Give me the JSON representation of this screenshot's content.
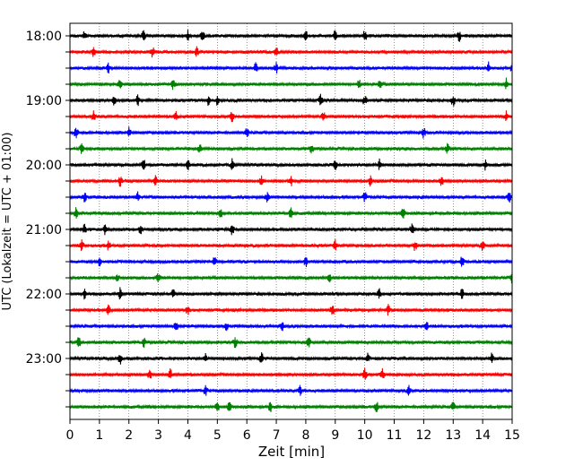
{
  "chart_data": {
    "type": "line",
    "xlabel": "Zeit  [min]",
    "ylabel": "UTC (Lokalzeit = UTC + 01:00)",
    "xlim": [
      0,
      15
    ],
    "x_ticks": [
      "0",
      "1",
      "2",
      "3",
      "4",
      "5",
      "6",
      "7",
      "8",
      "9",
      "10",
      "11",
      "12",
      "13",
      "14",
      "15"
    ],
    "y_tick_labels": [
      "18:00",
      "19:00",
      "20:00",
      "21:00",
      "22:00",
      "23:00"
    ],
    "grid": "vertical dotted lines at each minute",
    "row_interval_minutes": 15,
    "trace_count": 24,
    "trace_colors": [
      "#000000",
      "#ff0000",
      "#0000ff",
      "#008000"
    ],
    "traces": [
      {
        "start": "18:00",
        "events": [
          0.5,
          2.5,
          4.0,
          4.5,
          8.0,
          9.0,
          10.0,
          13.2
        ]
      },
      {
        "start": "18:15",
        "events": [
          0.8,
          2.8,
          4.3,
          7.0
        ]
      },
      {
        "start": "18:30",
        "events": [
          1.3,
          6.3,
          7.0,
          14.2,
          15.0
        ]
      },
      {
        "start": "18:45",
        "events": [
          1.7,
          3.5,
          9.8,
          10.5,
          14.8
        ]
      },
      {
        "start": "19:00",
        "events": [
          1.5,
          2.3,
          4.7,
          5.0,
          8.5,
          10.0,
          13.0
        ]
      },
      {
        "start": "19:15",
        "events": [
          0.8,
          3.6,
          5.5,
          8.6,
          14.8
        ]
      },
      {
        "start": "19:30",
        "events": [
          0.2,
          2.0,
          6.0,
          12.0
        ]
      },
      {
        "start": "19:45",
        "events": [
          0.4,
          4.4,
          8.2,
          12.8
        ]
      },
      {
        "start": "20:00",
        "events": [
          2.5,
          4.0,
          5.5,
          9.0,
          10.5,
          14.1
        ]
      },
      {
        "start": "20:15",
        "events": [
          1.7,
          2.9,
          6.5,
          7.5,
          10.2,
          12.6
        ]
      },
      {
        "start": "20:30",
        "events": [
          0.5,
          2.3,
          6.7,
          10.0,
          14.9
        ]
      },
      {
        "start": "20:45",
        "events": [
          0.2,
          5.1,
          7.5,
          11.3
        ]
      },
      {
        "start": "21:00",
        "events": [
          0.5,
          1.2,
          2.4,
          5.5,
          11.6
        ]
      },
      {
        "start": "21:15",
        "events": [
          0.4,
          1.3,
          9.0,
          11.7,
          14.0
        ]
      },
      {
        "start": "21:30",
        "events": [
          1.0,
          4.9,
          8.0,
          13.3
        ]
      },
      {
        "start": "21:45",
        "events": [
          1.6,
          3.0,
          8.8,
          15.0
        ]
      },
      {
        "start": "22:00",
        "events": [
          0.5,
          1.7,
          3.5,
          10.5,
          13.3
        ]
      },
      {
        "start": "22:15",
        "events": [
          1.3,
          4.0,
          8.9,
          10.8
        ]
      },
      {
        "start": "22:30",
        "events": [
          3.6,
          5.3,
          7.2,
          12.1
        ]
      },
      {
        "start": "22:45",
        "events": [
          0.3,
          2.5,
          5.6,
          8.1
        ]
      },
      {
        "start": "23:00",
        "events": [
          1.7,
          4.6,
          6.5,
          10.1,
          14.3
        ]
      },
      {
        "start": "23:15",
        "events": [
          2.7,
          3.4,
          10.0,
          10.6
        ]
      },
      {
        "start": "23:30",
        "events": [
          4.6,
          7.8,
          11.5
        ]
      },
      {
        "start": "23:45",
        "events": [
          5.0,
          5.4,
          6.8,
          10.4,
          13.0
        ]
      }
    ]
  }
}
